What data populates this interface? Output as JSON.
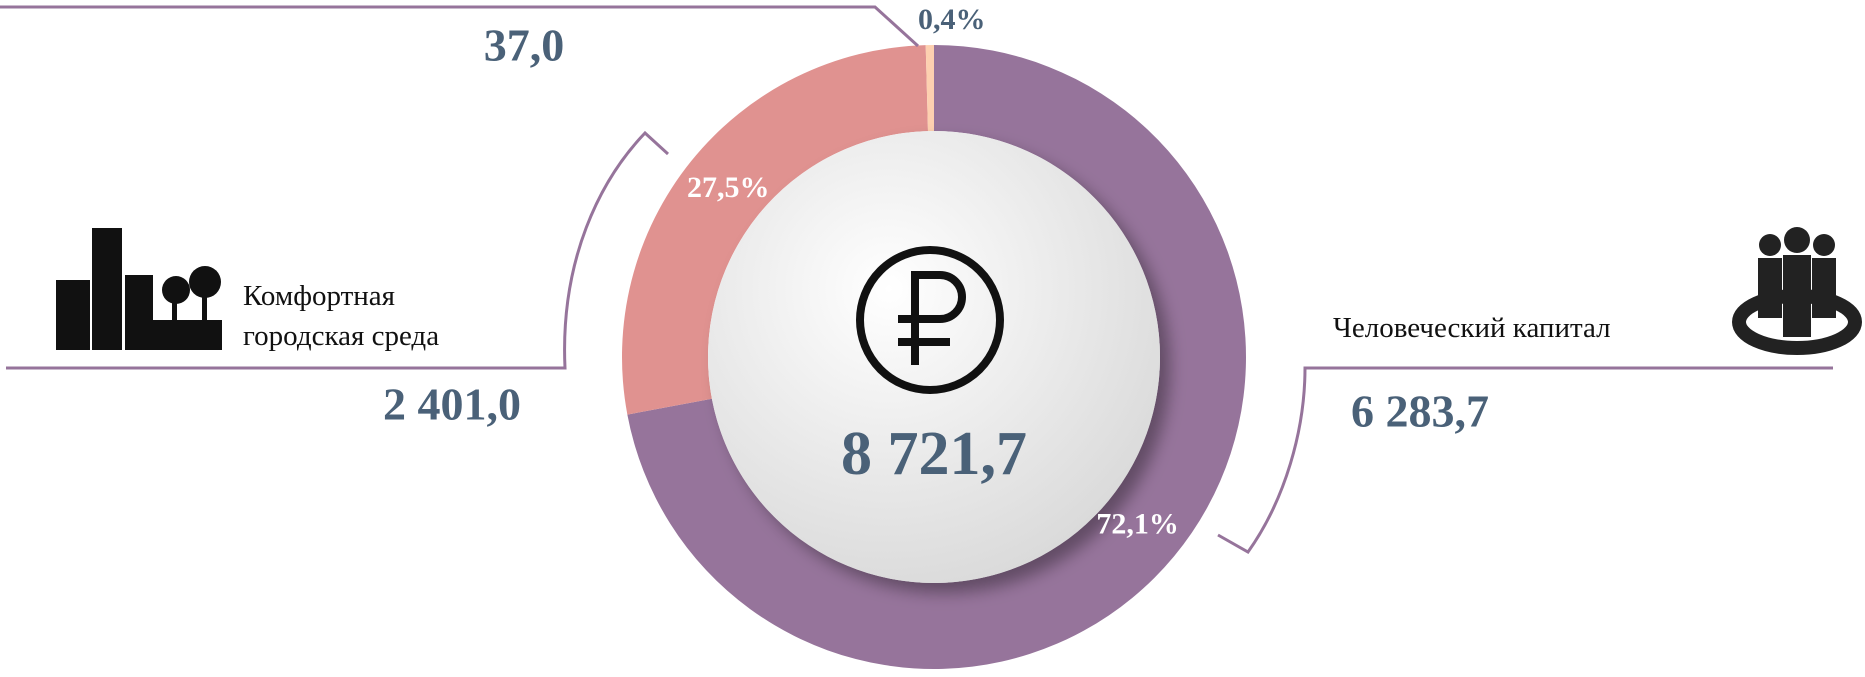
{
  "chart_data": {
    "type": "donut",
    "categories": [
      "Человеческий капитал",
      "Комфортная городская среда",
      null
    ],
    "values": [
      6283.7,
      2401.0,
      37.0
    ],
    "value_labels": [
      "6 283,7",
      "2 401,0",
      "37,0"
    ],
    "percents": [
      72.1,
      27.5,
      0.4
    ],
    "percent_labels": [
      "72,1%",
      "27,5%",
      "0,4%"
    ],
    "colors": [
      "#96749b",
      "#e09290",
      "#fdd0b0"
    ],
    "total": 8721.7,
    "total_label": "8 721,7"
  }
}
